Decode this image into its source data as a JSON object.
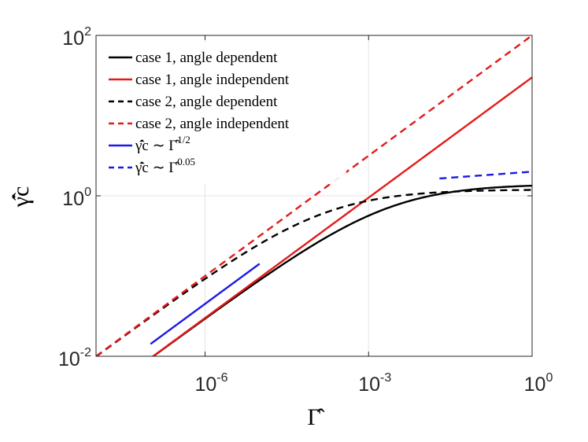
{
  "chart_data": {
    "type": "line",
    "title": "",
    "xscale": "log",
    "yscale": "log",
    "xlim_exp": [
      -8,
      0
    ],
    "ylim_exp": [
      -2,
      2
    ],
    "x_tick_exps": [
      -6,
      -3,
      0
    ],
    "y_tick_exps": [
      -2,
      0,
      2
    ],
    "x_tick_labels": [
      {
        "base": "10",
        "exp": "-6"
      },
      {
        "base": "10",
        "exp": "-3"
      },
      {
        "base": "10",
        "exp": "0"
      }
    ],
    "y_tick_labels": [
      {
        "base": "10",
        "exp": "-2"
      },
      {
        "base": "10",
        "exp": "0"
      },
      {
        "base": "10",
        "exp": "2"
      }
    ],
    "xlabel": "Γ̂",
    "ylabel": "γ̂̇c",
    "grid": true,
    "legend_position": "top-left",
    "series": [
      {
        "name": "case 1, angle dependent",
        "color": "#000000",
        "dash": "solid",
        "model": "sat",
        "A": 30,
        "p": 0.5,
        "K": 1.4
      },
      {
        "name": "case 1, angle independent",
        "color": "#e41a1a",
        "dash": "solid",
        "model": "power",
        "A": 30,
        "p": 0.5,
        "x_exp_range": [
          -7,
          0
        ]
      },
      {
        "name": "case 2, angle dependent",
        "color": "#000000",
        "dash": "dashed",
        "model": "sat",
        "A": 100,
        "p": 0.5,
        "K": 1.2
      },
      {
        "name": "case 2, angle independent",
        "color": "#e41a1a",
        "dash": "dashed",
        "model": "power",
        "A": 100,
        "p": 0.5,
        "x_exp_range": [
          -8,
          0
        ]
      },
      {
        "name": "γ̂̇c ~ Γ̂1/2",
        "legend_main": "γ̂̇c ∼ Γ̂",
        "legend_sup": "1/2",
        "color": "#1a1ae6",
        "dash": "solid",
        "model": "power",
        "A": 45,
        "p": 0.5,
        "x_exp_range": [
          -7,
          -5
        ]
      },
      {
        "name": "γ̂̇c ~ Γ̂0.05",
        "legend_main": "γ̂̇c ∼ Γ̂",
        "legend_sup": "0.05",
        "color": "#1a1ae6",
        "dash": "dashed",
        "model": "power",
        "A": 2.0,
        "p": 0.05,
        "x_exp_range": [
          -1.7,
          0
        ]
      }
    ]
  }
}
